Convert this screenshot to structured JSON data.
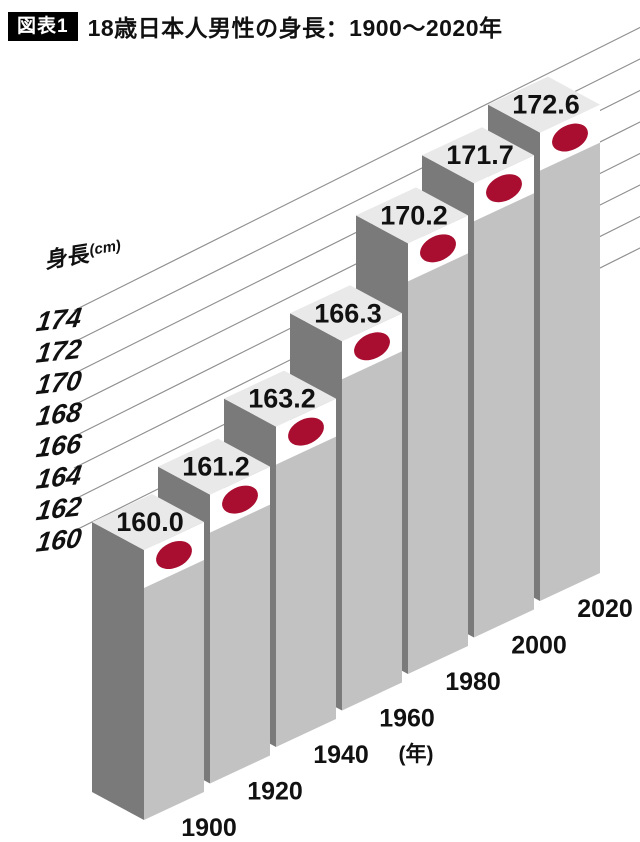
{
  "title": {
    "badge": "図表1",
    "text": "18歳日本人男性の身長：1900〜2020年"
  },
  "y_axis": {
    "label": "身長",
    "unit": "(cm)",
    "ticks": [
      "174",
      "172",
      "170",
      "168",
      "166",
      "164",
      "162",
      "160"
    ]
  },
  "x_axis": {
    "unit": "(年)"
  },
  "chart_data": {
    "type": "bar",
    "style": "3d-oblique-columns",
    "title": "18歳日本人男性の身長：1900〜2020年",
    "categories": [
      "1900",
      "1920",
      "1940",
      "1960",
      "1980",
      "2000",
      "2020"
    ],
    "values": [
      160.0,
      161.2,
      163.2,
      166.3,
      170.2,
      171.7,
      172.6
    ],
    "value_labels": [
      "160.0",
      "161.2",
      "163.2",
      "166.3",
      "170.2",
      "171.7",
      "172.6"
    ],
    "ylabel": "身長(cm)",
    "xlabel": "(年)",
    "ylim": [
      160,
      174
    ],
    "tick_step": 2,
    "grid": true,
    "marker": "japan-flag-dot"
  },
  "colors": {
    "accent_red": "#a90d2f",
    "bar_front": "#c2c2c2",
    "bar_side": "#7a7a7a",
    "bar_top": "#e9e9e9",
    "band_white": "#ffffff",
    "gridline": "#8f8f8f",
    "text": "#111111",
    "badge_bg": "#000000",
    "badge_fg": "#ffffff"
  }
}
